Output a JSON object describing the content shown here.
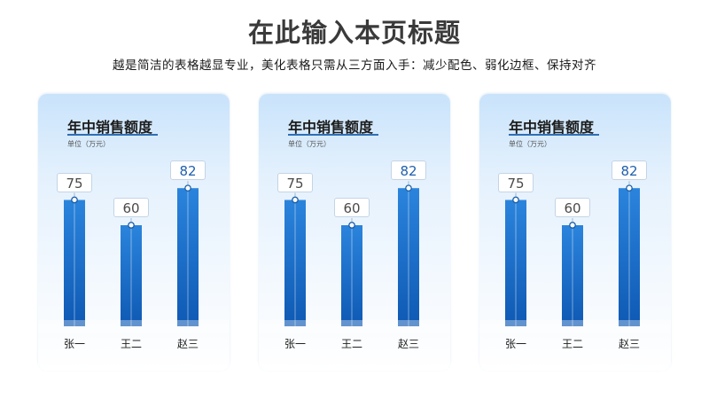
{
  "page": {
    "title": "在此输入本页标题",
    "subtitle": "越是简洁的表格越显专业，美化表格只需从三方面入手：减少配色、弱化边框、保持对齐"
  },
  "colors": {
    "bar_top": "#2b84dc",
    "bar_bottom": "#0e59b4",
    "accent": "#2f6fb6"
  },
  "chart_data": [
    {
      "type": "bar",
      "title": "年中销售额度",
      "unit": "单位（万元）",
      "categories": [
        "张一",
        "王二",
        "赵三"
      ],
      "values": [
        75,
        60,
        82
      ],
      "ylim": [
        0,
        100
      ],
      "grid": false
    },
    {
      "type": "bar",
      "title": "年中销售额度",
      "unit": "单位（万元）",
      "categories": [
        "张一",
        "王二",
        "赵三"
      ],
      "values": [
        75,
        60,
        82
      ],
      "ylim": [
        0,
        100
      ],
      "grid": false
    },
    {
      "type": "bar",
      "title": "年中销售额度",
      "unit": "单位（万元）",
      "categories": [
        "张一",
        "王二",
        "赵三"
      ],
      "values": [
        75,
        60,
        82
      ],
      "ylim": [
        0,
        100
      ],
      "grid": false
    }
  ]
}
